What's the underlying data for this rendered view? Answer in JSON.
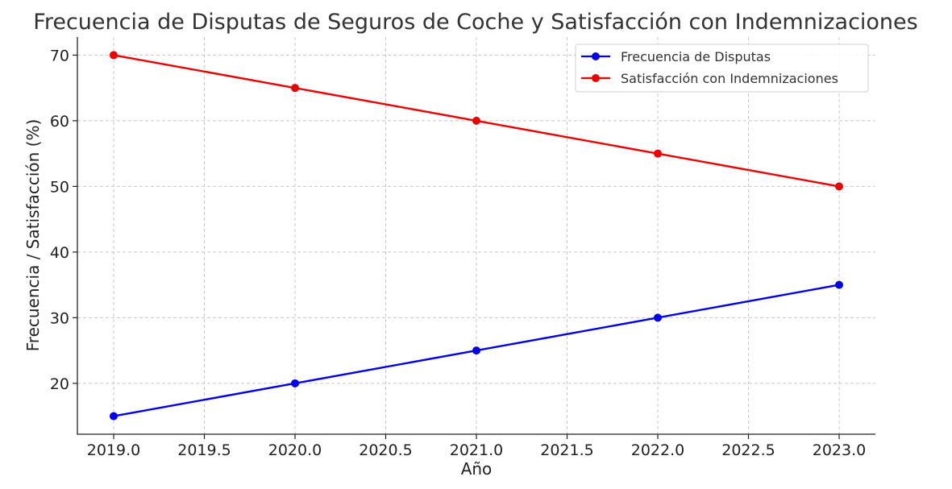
{
  "chart_data": {
    "type": "line",
    "title": "Frecuencia de Disputas de Seguros de Coche y Satisfacción con Indemnizaciones",
    "xlabel": "Año",
    "ylabel": "Frecuencia / Satisfacción (%)",
    "x": [
      2019,
      2020,
      2021,
      2022,
      2023
    ],
    "x_ticks": [
      "2019.0",
      "2019.5",
      "2020.0",
      "2020.5",
      "2021.0",
      "2021.5",
      "2022.0",
      "2022.5",
      "2023.0"
    ],
    "y_ticks": [
      "20",
      "30",
      "40",
      "50",
      "60",
      "70"
    ],
    "xlim": [
      2018.8,
      2023.2
    ],
    "ylim": [
      12.25,
      72.75
    ],
    "grid": true,
    "legend_position": "top-right",
    "series": [
      {
        "name": "Frecuencia de Disputas",
        "color": "#0000ee",
        "values": [
          15,
          20,
          25,
          30,
          35
        ]
      },
      {
        "name": "Satisfacción con Indemnizaciones",
        "color": "#ee0000",
        "values": [
          70,
          65,
          60,
          55,
          50
        ]
      }
    ]
  }
}
